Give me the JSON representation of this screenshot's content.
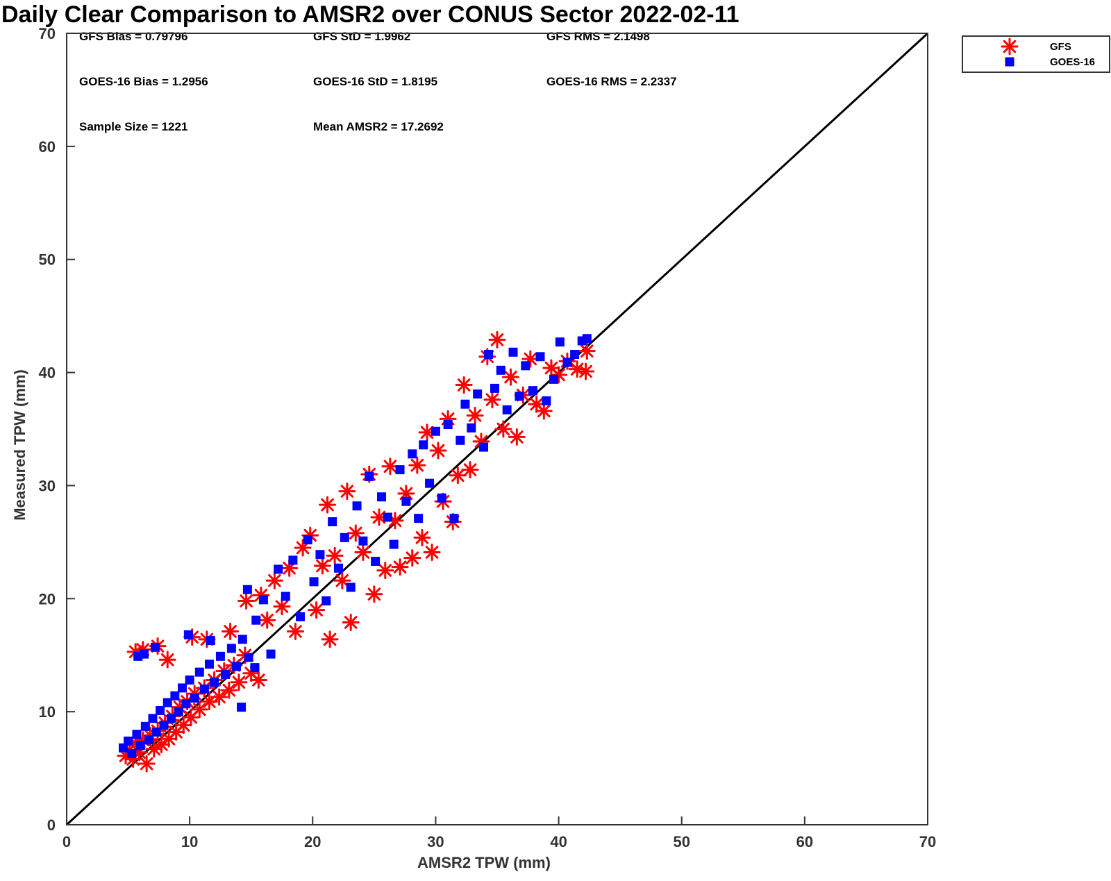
{
  "chart_data": {
    "type": "scatter",
    "title": "Daily Clear Comparison to AMSR2 over CONUS Sector 2022-02-11",
    "xlabel": "AMSR2 TPW (mm)",
    "ylabel": "Measured TPW (mm)",
    "xlim": [
      0,
      70
    ],
    "ylim": [
      0,
      70
    ],
    "xticks": [
      0,
      10,
      20,
      30,
      40,
      50,
      60,
      70
    ],
    "yticks": [
      0,
      10,
      20,
      30,
      40,
      50,
      60,
      70
    ],
    "grid": false,
    "legend_position": "top-right, outside plot",
    "reference_line": {
      "from": [
        0,
        0
      ],
      "to": [
        70,
        70
      ],
      "color": "#000000"
    },
    "stats": [
      [
        "GFS Bias = 0.79796",
        "GFS StD = 1.9962",
        "GFS RMS = 2.1498"
      ],
      [
        "GOES-16 Bias = 1.2956",
        "GOES-16 StD = 1.8195",
        "GOES-16 RMS = 2.2337"
      ],
      [
        "Sample Size = 1221",
        "Mean AMSR2 = 17.2692"
      ]
    ],
    "series": [
      {
        "name": "GFS",
        "marker": "asterisk",
        "color": "#ff0000",
        "points": [
          [
            4.8,
            6.1
          ],
          [
            5.1,
            6.6
          ],
          [
            5.4,
            5.8
          ],
          [
            5.6,
            7.2
          ],
          [
            5.9,
            6.4
          ],
          [
            6.2,
            7.5
          ],
          [
            6.5,
            5.4
          ],
          [
            6.8,
            7.9
          ],
          [
            7.1,
            6.7
          ],
          [
            7.4,
            8.3
          ],
          [
            7.7,
            7.1
          ],
          [
            8.0,
            9.0
          ],
          [
            8.3,
            7.6
          ],
          [
            8.6,
            9.6
          ],
          [
            8.9,
            8.2
          ],
          [
            9.2,
            10.4
          ],
          [
            9.5,
            8.8
          ],
          [
            9.8,
            10.9
          ],
          [
            10.1,
            9.5
          ],
          [
            10.4,
            11.6
          ],
          [
            10.8,
            10.2
          ],
          [
            11.2,
            12.1
          ],
          [
            11.6,
            10.9
          ],
          [
            12.0,
            12.8
          ],
          [
            12.4,
            11.3
          ],
          [
            12.8,
            13.6
          ],
          [
            13.2,
            11.9
          ],
          [
            13.6,
            14.1
          ],
          [
            14.0,
            12.6
          ],
          [
            14.5,
            15.0
          ],
          [
            15.0,
            13.4
          ],
          [
            15.6,
            12.8
          ],
          [
            5.6,
            15.3
          ],
          [
            6.2,
            15.5
          ],
          [
            7.4,
            15.8
          ],
          [
            8.2,
            14.6
          ],
          [
            10.2,
            16.6
          ],
          [
            11.4,
            16.4
          ],
          [
            13.3,
            17.1
          ],
          [
            14.6,
            19.8
          ],
          [
            15.8,
            20.3
          ],
          [
            16.3,
            18.1
          ],
          [
            16.9,
            21.6
          ],
          [
            17.5,
            19.3
          ],
          [
            18.1,
            22.7
          ],
          [
            18.6,
            17.1
          ],
          [
            19.2,
            24.5
          ],
          [
            19.8,
            25.6
          ],
          [
            20.3,
            19.0
          ],
          [
            20.8,
            22.9
          ],
          [
            21.2,
            28.3
          ],
          [
            21.4,
            16.4
          ],
          [
            21.8,
            23.8
          ],
          [
            22.4,
            21.6
          ],
          [
            22.8,
            29.5
          ],
          [
            23.1,
            17.9
          ],
          [
            23.5,
            25.8
          ],
          [
            24.1,
            24.1
          ],
          [
            24.6,
            31.0
          ],
          [
            25.0,
            20.4
          ],
          [
            25.4,
            27.2
          ],
          [
            25.9,
            22.5
          ],
          [
            26.3,
            31.7
          ],
          [
            26.7,
            26.9
          ],
          [
            27.1,
            22.8
          ],
          [
            27.6,
            29.3
          ],
          [
            28.1,
            23.6
          ],
          [
            28.5,
            31.8
          ],
          [
            28.9,
            25.4
          ],
          [
            29.3,
            34.7
          ],
          [
            29.7,
            24.1
          ],
          [
            30.2,
            33.1
          ],
          [
            30.6,
            28.6
          ],
          [
            31.0,
            35.9
          ],
          [
            31.4,
            26.8
          ],
          [
            31.8,
            30.9
          ],
          [
            32.3,
            38.9
          ],
          [
            32.8,
            31.4
          ],
          [
            33.2,
            36.2
          ],
          [
            33.7,
            33.9
          ],
          [
            34.2,
            41.4
          ],
          [
            34.6,
            37.6
          ],
          [
            35.0,
            42.9
          ],
          [
            35.5,
            35.0
          ],
          [
            36.1,
            39.6
          ],
          [
            36.6,
            34.3
          ],
          [
            37.1,
            38.0
          ],
          [
            37.7,
            41.2
          ],
          [
            38.2,
            37.2
          ],
          [
            38.8,
            36.6
          ],
          [
            39.4,
            40.4
          ],
          [
            40.0,
            39.8
          ],
          [
            40.7,
            41.0
          ],
          [
            41.5,
            40.3
          ],
          [
            42.2,
            40.1
          ],
          [
            42.3,
            41.9
          ]
        ]
      },
      {
        "name": "GOES-16",
        "marker": "square",
        "color": "#0000ff",
        "points": [
          [
            4.6,
            6.8
          ],
          [
            5.0,
            7.4
          ],
          [
            5.3,
            6.3
          ],
          [
            5.7,
            8.0
          ],
          [
            6.0,
            7.0
          ],
          [
            6.4,
            8.7
          ],
          [
            6.7,
            7.5
          ],
          [
            7.0,
            9.4
          ],
          [
            7.3,
            8.2
          ],
          [
            7.6,
            10.1
          ],
          [
            7.9,
            8.8
          ],
          [
            8.2,
            10.8
          ],
          [
            8.5,
            9.4
          ],
          [
            8.8,
            11.4
          ],
          [
            9.1,
            10.0
          ],
          [
            9.4,
            12.1
          ],
          [
            9.7,
            10.7
          ],
          [
            10.0,
            12.8
          ],
          [
            10.4,
            11.2
          ],
          [
            10.8,
            13.5
          ],
          [
            11.2,
            12.0
          ],
          [
            11.6,
            14.2
          ],
          [
            12.0,
            12.6
          ],
          [
            12.5,
            14.9
          ],
          [
            12.9,
            13.3
          ],
          [
            13.4,
            15.6
          ],
          [
            13.8,
            14.0
          ],
          [
            14.3,
            16.4
          ],
          [
            14.8,
            14.8
          ],
          [
            15.3,
            13.9
          ],
          [
            14.2,
            10.4
          ],
          [
            5.8,
            14.9
          ],
          [
            6.3,
            15.1
          ],
          [
            7.2,
            15.7
          ],
          [
            9.9,
            16.8
          ],
          [
            11.7,
            16.3
          ],
          [
            14.7,
            20.8
          ],
          [
            15.4,
            18.1
          ],
          [
            16.0,
            19.9
          ],
          [
            16.6,
            15.1
          ],
          [
            17.2,
            22.6
          ],
          [
            17.8,
            20.2
          ],
          [
            18.4,
            23.4
          ],
          [
            19.0,
            18.4
          ],
          [
            19.6,
            25.2
          ],
          [
            20.1,
            21.5
          ],
          [
            20.6,
            23.9
          ],
          [
            21.1,
            19.8
          ],
          [
            21.6,
            26.8
          ],
          [
            22.1,
            22.7
          ],
          [
            22.6,
            25.4
          ],
          [
            23.1,
            21.0
          ],
          [
            23.6,
            28.2
          ],
          [
            24.1,
            25.1
          ],
          [
            24.6,
            30.8
          ],
          [
            25.1,
            23.3
          ],
          [
            25.6,
            29.0
          ],
          [
            26.1,
            27.2
          ],
          [
            26.6,
            24.8
          ],
          [
            27.1,
            31.4
          ],
          [
            27.6,
            28.6
          ],
          [
            28.1,
            32.8
          ],
          [
            28.6,
            27.1
          ],
          [
            29.0,
            33.6
          ],
          [
            29.5,
            30.2
          ],
          [
            30.0,
            34.8
          ],
          [
            30.5,
            28.9
          ],
          [
            31.0,
            35.4
          ],
          [
            31.5,
            27.1
          ],
          [
            32.0,
            34.0
          ],
          [
            32.4,
            37.2
          ],
          [
            32.9,
            35.1
          ],
          [
            33.4,
            38.1
          ],
          [
            33.9,
            33.4
          ],
          [
            34.3,
            41.6
          ],
          [
            34.8,
            38.6
          ],
          [
            35.3,
            40.2
          ],
          [
            35.8,
            36.7
          ],
          [
            36.3,
            41.8
          ],
          [
            36.8,
            37.9
          ],
          [
            37.3,
            40.6
          ],
          [
            37.9,
            38.4
          ],
          [
            38.5,
            41.4
          ],
          [
            39.0,
            37.5
          ],
          [
            39.6,
            39.4
          ],
          [
            40.1,
            42.7
          ],
          [
            40.7,
            40.9
          ],
          [
            41.3,
            41.6
          ],
          [
            41.9,
            42.8
          ],
          [
            42.3,
            43.0
          ]
        ]
      }
    ]
  }
}
